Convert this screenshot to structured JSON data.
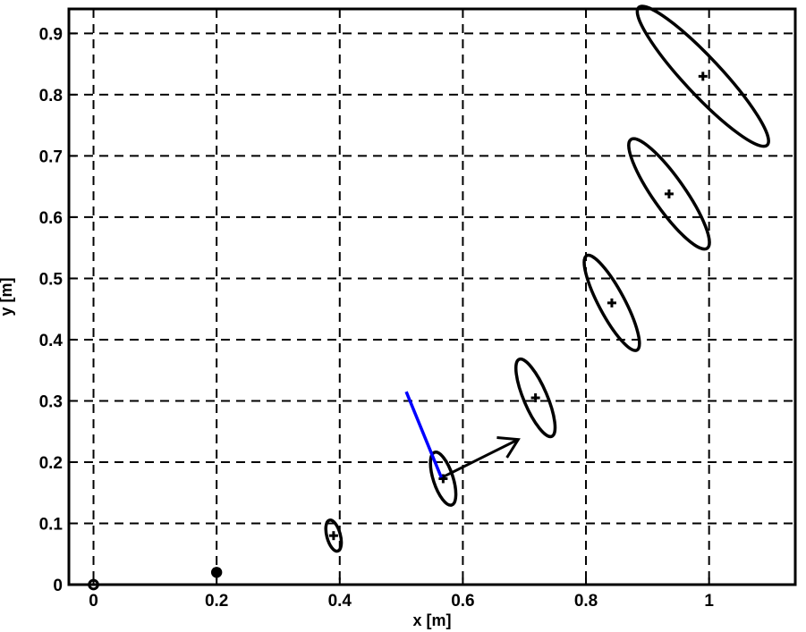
{
  "chart_data": {
    "type": "scatter",
    "xlabel": "x [m]",
    "ylabel": "y [m]",
    "xlim": [
      -0.04,
      1.14
    ],
    "ylim": [
      0,
      0.94
    ],
    "grid": true,
    "x_ticks": [
      {
        "value": 0,
        "label": "0"
      },
      {
        "value": 0.2,
        "label": "0.2"
      },
      {
        "value": 0.4,
        "label": "0.4"
      },
      {
        "value": 0.6,
        "label": "0.6"
      },
      {
        "value": 0.8,
        "label": "0.8"
      },
      {
        "value": 1,
        "label": "1"
      }
    ],
    "y_ticks": [
      {
        "value": 0,
        "label": "0"
      },
      {
        "value": 0.1,
        "label": "0.1"
      },
      {
        "value": 0.2,
        "label": "0.2"
      },
      {
        "value": 0.3,
        "label": "0.3"
      },
      {
        "value": 0.4,
        "label": "0.4"
      },
      {
        "value": 0.5,
        "label": "0.5"
      },
      {
        "value": 0.6,
        "label": "0.6"
      },
      {
        "value": 0.7,
        "label": "0.7"
      },
      {
        "value": 0.8,
        "label": "0.8"
      },
      {
        "value": 0.9,
        "label": "0.9"
      }
    ],
    "pose_estimates": [
      {
        "x": 0.0,
        "y": 0.0,
        "major": 0.007,
        "minor": 0.007,
        "angle_deg": 0,
        "marker": "circle"
      },
      {
        "x": 0.2,
        "y": 0.02,
        "major": 0.009,
        "minor": 0.009,
        "angle_deg": 0,
        "marker": "dot"
      },
      {
        "x": 0.39,
        "y": 0.08,
        "major": 0.026,
        "minor": 0.011,
        "angle_deg": 105,
        "marker": "plus"
      },
      {
        "x": 0.568,
        "y": 0.173,
        "major": 0.045,
        "minor": 0.016,
        "angle_deg": 108,
        "marker": "plus"
      },
      {
        "x": 0.718,
        "y": 0.305,
        "major": 0.068,
        "minor": 0.019,
        "angle_deg": 113,
        "marker": "plus"
      },
      {
        "x": 0.842,
        "y": 0.46,
        "major": 0.087,
        "minor": 0.021,
        "angle_deg": 118,
        "marker": "plus"
      },
      {
        "x": 0.935,
        "y": 0.638,
        "major": 0.108,
        "minor": 0.026,
        "angle_deg": 125,
        "marker": "plus"
      },
      {
        "x": 0.99,
        "y": 0.83,
        "major": 0.153,
        "minor": 0.03,
        "angle_deg": 133,
        "marker": "plus"
      }
    ],
    "blue_segment": {
      "from": [
        0.565,
        0.175
      ],
      "to": [
        0.508,
        0.315
      ],
      "color": "#0000ff"
    },
    "arrow": {
      "from": [
        0.568,
        0.176
      ],
      "to": [
        0.69,
        0.237
      ],
      "color": "#000000"
    }
  }
}
